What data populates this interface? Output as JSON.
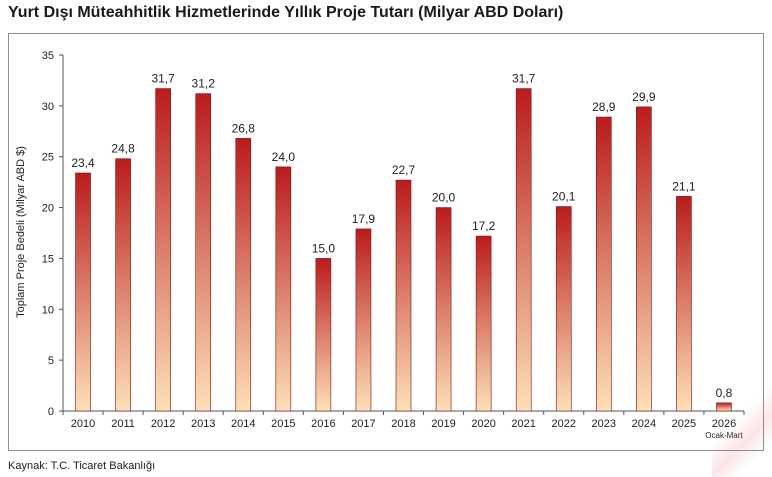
{
  "title": "Yurt Dışı Müteahhitlik Hizmetlerinde Yıllık Proje Tutarı (Milyar ABD Doları)",
  "source": "Kaynak: T.C. Ticaret Bakanlığı",
  "colors": {
    "bar_top": "#b91c1c",
    "bar_bottom": "#fde0b8",
    "bar_stroke": "#7a1010",
    "axis": "#555555",
    "frame": "#8c8c8c"
  },
  "chart_data": {
    "type": "bar",
    "title": "Yurt Dışı Müteahhitlik Hizmetlerinde Yıllık Proje Tutarı (Milyar ABD Doları)",
    "xlabel": "",
    "ylabel": "Toplam Proje Bedeli (Milyar ABD $)",
    "ylim": [
      0,
      35
    ],
    "yticks": [
      "0",
      "5",
      "10",
      "15",
      "20",
      "25",
      "30",
      "35"
    ],
    "ytick_values": [
      0,
      5,
      10,
      15,
      20,
      25,
      30,
      35
    ],
    "grid": false,
    "categories": [
      "2010",
      "2011",
      "2012",
      "2013",
      "2014",
      "2015",
      "2016",
      "2017",
      "2018",
      "2019",
      "2020",
      "2021",
      "2022",
      "2023",
      "2024",
      "2025",
      "2026"
    ],
    "category_sublabels": [
      "",
      "",
      "",
      "",
      "",
      "",
      "",
      "",
      "",
      "",
      "",
      "",
      "",
      "",
      "",
      "",
      "Ocak-Mart"
    ],
    "values": [
      23.4,
      24.8,
      31.7,
      31.2,
      26.8,
      24.0,
      15.0,
      17.9,
      22.7,
      20.0,
      17.2,
      31.7,
      20.1,
      28.9,
      29.9,
      21.1,
      0.8
    ],
    "value_labels": [
      "23,4",
      "24,8",
      "31,7",
      "31,2",
      "26,8",
      "24,0",
      "15,0",
      "17,9",
      "22,7",
      "20,0",
      "17,2",
      "31,7",
      "20,1",
      "28,9",
      "29,9",
      "21,1",
      "0,8"
    ]
  }
}
